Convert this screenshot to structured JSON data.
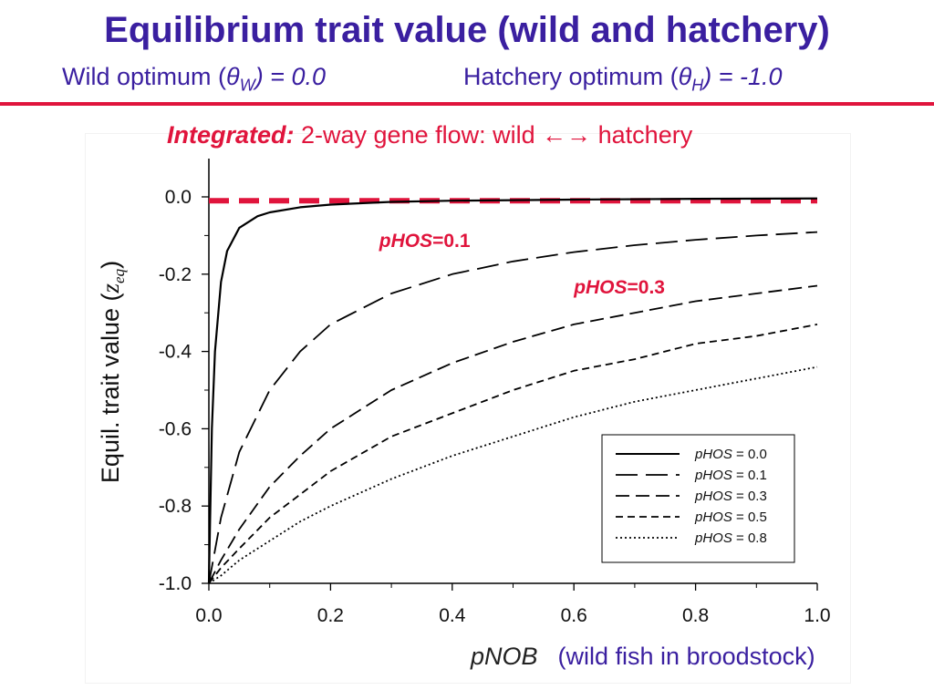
{
  "slide": {
    "title": "Equilibrium trait value (wild and hatchery)",
    "subtitle_left": {
      "prefix": "Wild optimum (",
      "symbol": "θ",
      "sub": "W",
      "suffix": ") = 0.0"
    },
    "subtitle_right": {
      "prefix": "Hatchery optimum (",
      "symbol": "θ",
      "sub": "H",
      "suffix": ") = -1.0"
    },
    "integrated_label": "Integrated:",
    "integrated_text": " 2-way gene flow:  wild ←→ hatchery",
    "x_caption_var": "pNOB",
    "x_caption_desc": "(wild fish in broodstock)"
  },
  "colors": {
    "title": "#3a1fa0",
    "accent_red": "#e0143c",
    "line": "#000000"
  },
  "chart_data": {
    "type": "line",
    "xlim": [
      0.0,
      1.0
    ],
    "ylim": [
      -1.0,
      0.0
    ],
    "xticks": [
      "0.0",
      "0.2",
      "0.4",
      "0.6",
      "0.8",
      "1.0"
    ],
    "yticks": [
      "0.0",
      "-0.2",
      "-0.4",
      "-0.6",
      "-0.8",
      "-1.0"
    ],
    "ylabel": "Equil. trait value",
    "ylabel_symbol": "z",
    "ylabel_symbol_sub": "eq",
    "grid": false,
    "legend_position": "bottom-right",
    "legend": [
      {
        "var": "pHOS",
        "value": " = 0.0",
        "style": "solid"
      },
      {
        "var": "pHOS",
        "value": " = 0.1",
        "style": "longdash"
      },
      {
        "var": "pHOS",
        "value": " = 0.3",
        "style": "dash"
      },
      {
        "var": "pHOS",
        "value": " = 0.5",
        "style": "shortdash"
      },
      {
        "var": "pHOS",
        "value": " = 0.8",
        "style": "dot"
      }
    ],
    "series": [
      {
        "name": "pHOS = 0.0",
        "style": "solid",
        "x": [
          0.0,
          0.005,
          0.01,
          0.02,
          0.03,
          0.05,
          0.08,
          0.1,
          0.15,
          0.2,
          0.3,
          0.4,
          0.6,
          0.8,
          1.0
        ],
        "y": [
          -1.0,
          -0.6,
          -0.4,
          -0.22,
          -0.14,
          -0.08,
          -0.05,
          -0.04,
          -0.027,
          -0.02,
          -0.013,
          -0.01,
          -0.007,
          -0.005,
          -0.004
        ]
      },
      {
        "name": "pHOS = 0.1",
        "style": "longdash",
        "x": [
          0.0,
          0.02,
          0.05,
          0.1,
          0.15,
          0.2,
          0.3,
          0.4,
          0.5,
          0.6,
          0.7,
          0.8,
          0.9,
          1.0
        ],
        "y": [
          -1.0,
          -0.83,
          -0.66,
          -0.5,
          -0.4,
          -0.33,
          -0.25,
          -0.2,
          -0.167,
          -0.143,
          -0.125,
          -0.111,
          -0.1,
          -0.091
        ]
      },
      {
        "name": "pHOS = 0.3",
        "style": "dash",
        "x": [
          0.0,
          0.02,
          0.05,
          0.1,
          0.15,
          0.2,
          0.3,
          0.4,
          0.5,
          0.6,
          0.7,
          0.8,
          0.9,
          1.0
        ],
        "y": [
          -1.0,
          -0.94,
          -0.86,
          -0.75,
          -0.67,
          -0.6,
          -0.5,
          -0.43,
          -0.375,
          -0.33,
          -0.3,
          -0.27,
          -0.25,
          -0.23
        ]
      },
      {
        "name": "pHOS = 0.5",
        "style": "shortdash",
        "x": [
          0.0,
          0.02,
          0.05,
          0.1,
          0.15,
          0.2,
          0.3,
          0.4,
          0.5,
          0.6,
          0.7,
          0.8,
          0.9,
          1.0
        ],
        "y": [
          -1.0,
          -0.96,
          -0.91,
          -0.83,
          -0.77,
          -0.71,
          -0.62,
          -0.56,
          -0.5,
          -0.45,
          -0.42,
          -0.38,
          -0.36,
          -0.33
        ]
      },
      {
        "name": "pHOS = 0.8",
        "style": "dot",
        "x": [
          0.0,
          0.02,
          0.05,
          0.1,
          0.15,
          0.2,
          0.3,
          0.4,
          0.5,
          0.6,
          0.7,
          0.8,
          0.9,
          1.0
        ],
        "y": [
          -1.0,
          -0.98,
          -0.94,
          -0.89,
          -0.84,
          -0.8,
          -0.73,
          -0.67,
          -0.62,
          -0.57,
          -0.53,
          -0.5,
          -0.47,
          -0.44
        ]
      }
    ],
    "reference_line": {
      "y": -0.01,
      "color": "#e0143c",
      "style": "dash"
    },
    "annotations": [
      {
        "var": "pHOS",
        "text": "=0.1",
        "color": "#e0143c",
        "anchor_x": 0.28,
        "anchor_y": -0.13
      },
      {
        "var": "pHOS",
        "text": "=0.3",
        "color": "#e0143c",
        "anchor_x": 0.6,
        "anchor_y": -0.25
      }
    ]
  }
}
